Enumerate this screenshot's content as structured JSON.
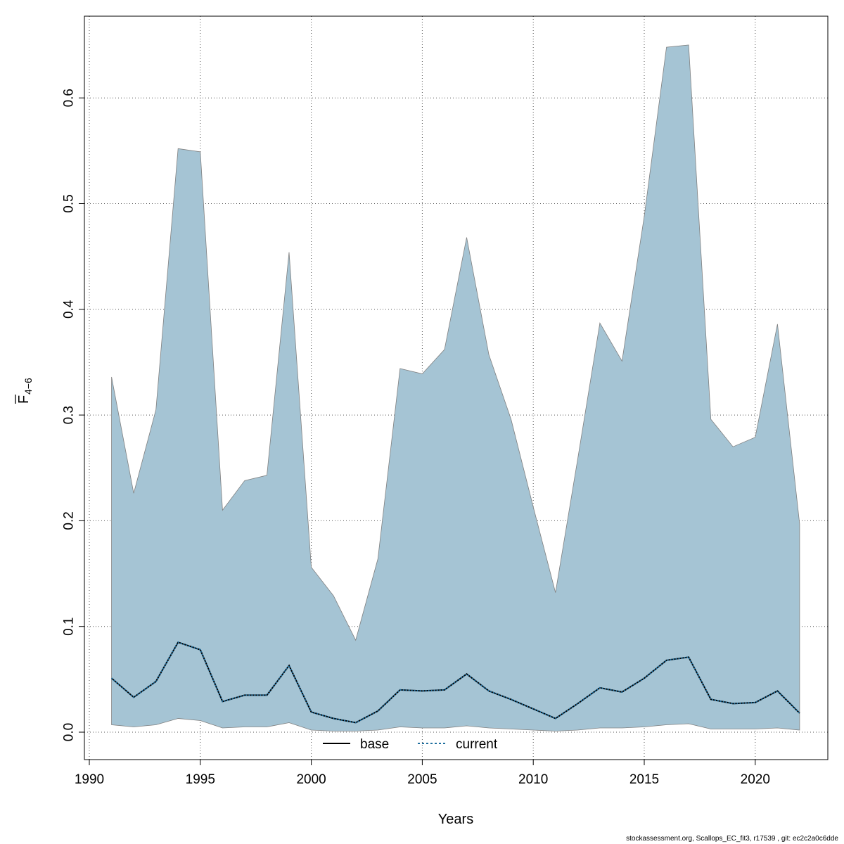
{
  "chart_data": {
    "type": "area",
    "xlabel": "Years",
    "ylabel_main": "F",
    "ylabel_sub": "4−6",
    "xlim": [
      1990,
      2023
    ],
    "ylim": [
      0,
      0.65
    ],
    "x_ticks": [
      1990,
      1995,
      2000,
      2005,
      2010,
      2015,
      2020
    ],
    "y_ticks": [
      0.0,
      0.1,
      0.2,
      0.3,
      0.4,
      0.5,
      0.6
    ],
    "x_tick_labels": [
      "1990",
      "1995",
      "2000",
      "2005",
      "2010",
      "2015",
      "2020"
    ],
    "y_tick_labels": [
      "0.0",
      "0.1",
      "0.2",
      "0.3",
      "0.4",
      "0.5",
      "0.6"
    ],
    "grid": true,
    "legend_position": "bottom",
    "x": [
      1991,
      1992,
      1993,
      1994,
      1995,
      1996,
      1997,
      1998,
      1999,
      2000,
      2001,
      2002,
      2003,
      2004,
      2005,
      2006,
      2007,
      2008,
      2009,
      2010,
      2011,
      2012,
      2013,
      2014,
      2015,
      2016,
      2017,
      2018,
      2019,
      2020,
      2021,
      2022
    ],
    "band": {
      "name": "base",
      "color": "#a5c4d4",
      "edge_color": "#808080",
      "lower": [
        0.007,
        0.005,
        0.007,
        0.013,
        0.011,
        0.004,
        0.005,
        0.005,
        0.009,
        0.002,
        0.001,
        0.001,
        0.002,
        0.005,
        0.004,
        0.004,
        0.006,
        0.004,
        0.003,
        0.002,
        0.001,
        0.002,
        0.004,
        0.004,
        0.005,
        0.007,
        0.008,
        0.003,
        0.003,
        0.003,
        0.004,
        0.002
      ],
      "upper": [
        0.336,
        0.226,
        0.305,
        0.552,
        0.549,
        0.21,
        0.238,
        0.243,
        0.454,
        0.156,
        0.129,
        0.087,
        0.164,
        0.344,
        0.339,
        0.362,
        0.468,
        0.357,
        0.296,
        0.213,
        0.132,
        0.258,
        0.387,
        0.351,
        0.488,
        0.648,
        0.65,
        0.296,
        0.27,
        0.279,
        0.386,
        0.197
      ]
    },
    "series": [
      {
        "name": "base",
        "style": "solid",
        "color": "#000000",
        "values": [
          0.051,
          0.033,
          0.048,
          0.085,
          0.078,
          0.029,
          0.035,
          0.035,
          0.063,
          0.019,
          0.013,
          0.009,
          0.02,
          0.04,
          0.039,
          0.04,
          0.055,
          0.039,
          0.031,
          0.022,
          0.013,
          0.027,
          0.042,
          0.038,
          0.051,
          0.068,
          0.071,
          0.031,
          0.027,
          0.028,
          0.039,
          0.018
        ]
      },
      {
        "name": "current",
        "style": "dotted",
        "color": "#1f6f9f",
        "values": [
          0.051,
          0.033,
          0.048,
          0.085,
          0.078,
          0.029,
          0.035,
          0.035,
          0.063,
          0.019,
          0.013,
          0.009,
          0.02,
          0.04,
          0.039,
          0.04,
          0.055,
          0.039,
          0.031,
          0.022,
          0.013,
          0.027,
          0.042,
          0.038,
          0.051,
          0.068,
          0.071,
          0.031,
          0.027,
          0.028,
          0.039,
          0.018
        ]
      }
    ]
  },
  "legend": {
    "base_label": "base",
    "current_label": "current"
  },
  "footer": "stockassessment.org, Scallops_EC_fit3, r17539 , git: ec2c2a0c6dde"
}
